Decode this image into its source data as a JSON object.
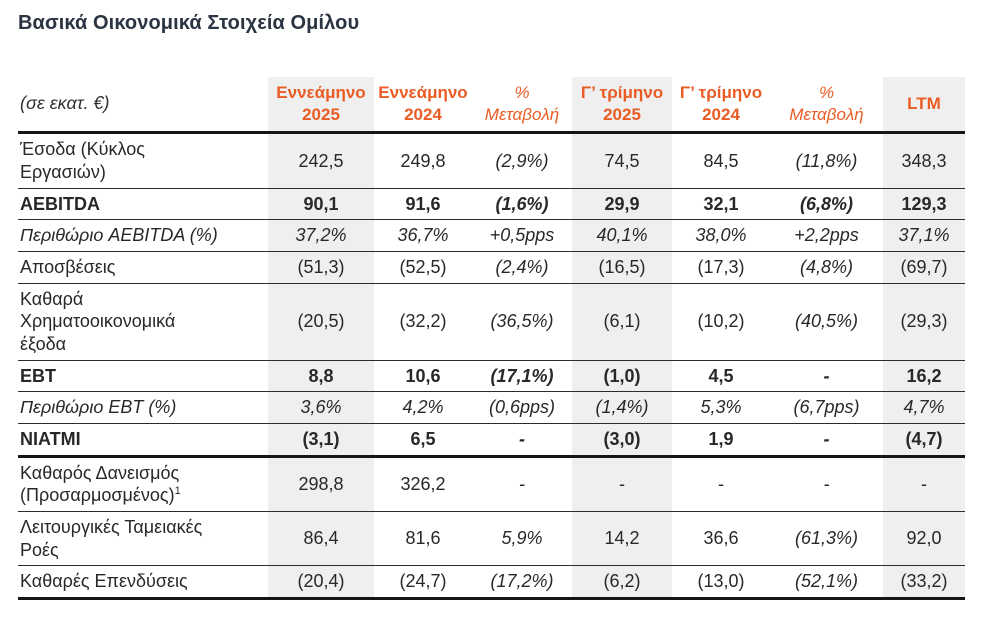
{
  "title": "Βασικά Οικονομικά Στοιχεία Ομίλου",
  "colors": {
    "accent_orange": "#ea5c24",
    "title_dark": "#2b3442",
    "shaded_column_bg": "#efefef",
    "border_black": "#161616"
  },
  "table": {
    "unit_label": "(σε εκατ. €)",
    "columns": [
      {
        "line1": "Εννεάμηνο",
        "line2": "2025",
        "shaded": true,
        "italic": false
      },
      {
        "line1": "Εννεάμηνο",
        "line2": "2024",
        "shaded": false,
        "italic": false
      },
      {
        "line1": "%",
        "line2": "Μεταβολή",
        "shaded": false,
        "italic": true
      },
      {
        "line1": "Γ’ τρίμηνο",
        "line2": "2025",
        "shaded": true,
        "italic": false
      },
      {
        "line1": "Γ’ τρίμηνο",
        "line2": "2024",
        "shaded": false,
        "italic": false
      },
      {
        "line1": "%",
        "line2": "Μεταβολή",
        "shaded": false,
        "italic": true
      },
      {
        "line1": "LTM",
        "line2": "",
        "shaded": true,
        "italic": false
      }
    ],
    "rows": [
      {
        "label": "Έσοδα (Κύκλος Εργασιών)",
        "style": "normal",
        "values": [
          "242,5",
          "249,8",
          "(2,9%)",
          "74,5",
          "84,5",
          "(11,8%)",
          "348,3"
        ]
      },
      {
        "label": "AEBITDA",
        "style": "bold",
        "values": [
          "90,1",
          "91,6",
          "(1,6%)",
          "29,9",
          "32,1",
          "(6,8%)",
          "129,3"
        ]
      },
      {
        "label": "Περιθώριο AEBITDA (%)",
        "style": "italic",
        "values": [
          "37,2%",
          "36,7%",
          "+0,5pps",
          "40,1%",
          "38,0%",
          "+2,2pps",
          "37,1%"
        ]
      },
      {
        "label": "Αποσβέσεις",
        "style": "normal",
        "values": [
          "(51,3)",
          "(52,5)",
          "(2,4%)",
          "(16,5)",
          "(17,3)",
          "(4,8%)",
          "(69,7)"
        ]
      },
      {
        "label": "Καθαρά Χρηματοοικονομικά έξοδα",
        "style": "normal",
        "values": [
          "(20,5)",
          "(32,2)",
          "(36,5%)",
          "(6,1)",
          "(10,2)",
          "(40,5%)",
          "(29,3)"
        ]
      },
      {
        "label": "EBT",
        "style": "bold",
        "values": [
          "8,8",
          "10,6",
          "(17,1%)",
          "(1,0)",
          "4,5",
          "-",
          "16,2"
        ]
      },
      {
        "label": "Περιθώριο EBT (%)",
        "style": "italic",
        "values": [
          "3,6%",
          "4,2%",
          "(0,6pps)",
          "(1,4%)",
          "5,3%",
          "(6,7pps)",
          "4,7%"
        ]
      },
      {
        "label": "NIATMI",
        "style": "bold",
        "thick_border": true,
        "values": [
          "(3,1)",
          "6,5",
          "-",
          "(3,0)",
          "1,9",
          "-",
          "(4,7)"
        ]
      },
      {
        "label": "Καθαρός Δανεισμός (Προσαρμοσμένος)",
        "label_sup": "1",
        "style": "normal",
        "values": [
          "298,8",
          "326,2",
          "-",
          "-",
          "-",
          "-",
          "-"
        ]
      },
      {
        "label": "Λειτουργικές Ταμειακές Ροές",
        "style": "normal",
        "values": [
          "86,4",
          "81,6",
          "5,9%",
          "14,2",
          "36,6",
          "(61,3%)",
          "92,0"
        ]
      },
      {
        "label": "Καθαρές Επενδύσεις",
        "style": "normal",
        "values": [
          "(20,4)",
          "(24,7)",
          "(17,2%)",
          "(6,2)",
          "(13,0)",
          "(52,1%)",
          "(33,2)"
        ]
      }
    ]
  }
}
